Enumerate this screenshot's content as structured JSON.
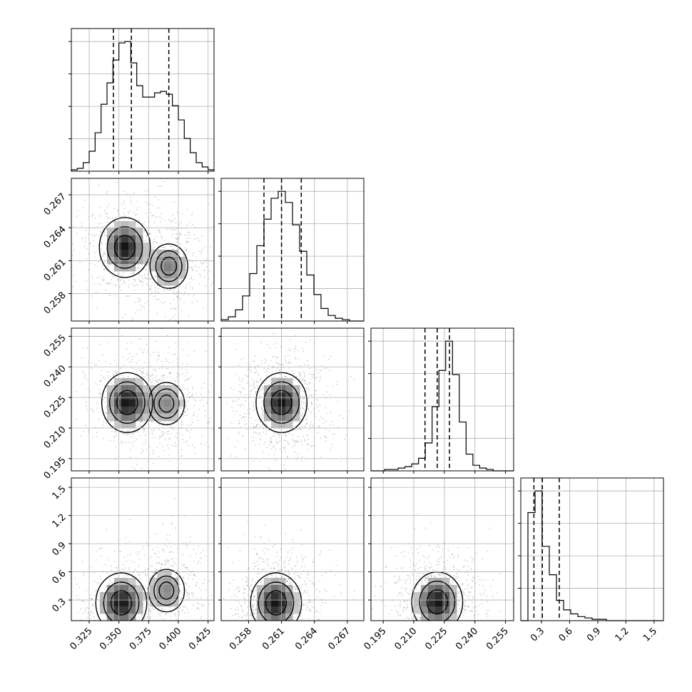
{
  "chart_data": {
    "type": "corner",
    "parameters": 4,
    "grid": true,
    "axes": [
      {
        "range": [
          0.31,
          0.43
        ],
        "ticks": [
          0.325,
          0.35,
          0.375,
          0.4,
          0.425
        ],
        "tick_labels": [
          "0.325",
          "0.350",
          "0.375",
          "0.400",
          "0.425"
        ]
      },
      {
        "range": [
          0.2555,
          0.2685
        ],
        "ticks": [
          0.258,
          0.261,
          0.264,
          0.267
        ],
        "tick_labels": [
          "0.258",
          "0.261",
          "0.264",
          "0.267"
        ]
      },
      {
        "range": [
          0.189,
          0.259
        ],
        "ticks": [
          0.195,
          0.21,
          0.225,
          0.24,
          0.255
        ],
        "tick_labels": [
          "0.195",
          "0.210",
          "0.225",
          "0.240",
          "0.255"
        ]
      },
      {
        "range": [
          0.08,
          1.6
        ],
        "ticks": [
          0.3,
          0.6,
          0.9,
          1.2,
          1.5
        ],
        "tick_labels": [
          "0.3",
          "0.6",
          "0.9",
          "1.2",
          "1.5"
        ]
      }
    ],
    "histograms": [
      {
        "parameter": 0,
        "bins": [
          0.31,
          0.43
        ],
        "counts": [
          1,
          2,
          6,
          14,
          27,
          47,
          62,
          78,
          90,
          91,
          76,
          60,
          52,
          52,
          55,
          56,
          54,
          46,
          36,
          23,
          13,
          6,
          3,
          1
        ],
        "quantiles": [
          0.3454,
          0.3605,
          0.392
        ]
      },
      {
        "parameter": 1,
        "bins": [
          0.2555,
          0.2685
        ],
        "counts": [
          1,
          3,
          8,
          18,
          34,
          54,
          73,
          88,
          93,
          85,
          69,
          50,
          33,
          19,
          9,
          4,
          2,
          1,
          0,
          0
        ],
        "quantiles": [
          0.2594,
          0.261,
          0.2628
        ]
      },
      {
        "parameter": 2,
        "bins": [
          0.189,
          0.259
        ],
        "counts": [
          0,
          0,
          1,
          1,
          2,
          3,
          5,
          9,
          20,
          46,
          72,
          93,
          69,
          35,
          12,
          4,
          2,
          1,
          0,
          0,
          0
        ],
        "quantiles": [
          0.2155,
          0.2215,
          0.2275
        ]
      },
      {
        "parameter": 3,
        "bins": [
          0.08,
          1.6
        ],
        "counts": [
          0,
          80,
          96,
          55,
          34,
          15,
          8,
          5,
          3,
          2,
          1,
          1,
          0,
          0,
          0,
          0,
          0,
          0,
          0,
          0
        ],
        "quantiles": [
          0.22,
          0.31,
          0.49
        ]
      }
    ],
    "contour_panels": [
      {
        "x": 0,
        "y": 1,
        "peaks": [
          [
            0.355,
            0.2622,
            1.0
          ],
          [
            0.392,
            0.2605,
            0.55
          ]
        ]
      },
      {
        "x": 0,
        "y": 2,
        "peaks": [
          [
            0.357,
            0.2225,
            1.0
          ],
          [
            0.39,
            0.222,
            0.5
          ]
        ]
      },
      {
        "x": 0,
        "y": 3,
        "peaks": [
          [
            0.352,
            0.27,
            1.0
          ],
          [
            0.39,
            0.4,
            0.5
          ]
        ]
      },
      {
        "x": 1,
        "y": 2,
        "peaks": [
          [
            0.261,
            0.2225,
            1.0
          ]
        ]
      },
      {
        "x": 1,
        "y": 3,
        "peaks": [
          [
            0.2605,
            0.27,
            1.0
          ]
        ]
      },
      {
        "x": 2,
        "y": 3,
        "peaks": [
          [
            0.2215,
            0.28,
            1.0
          ]
        ]
      }
    ]
  }
}
